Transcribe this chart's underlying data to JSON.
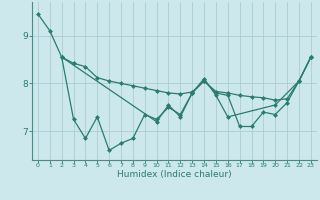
{
  "xlabel": "Humidex (Indice chaleur)",
  "bg_color": "#cce8ec",
  "line_color": "#2a7d6e",
  "grid_color": "#aacdd4",
  "axis_color": "#4a8a8a",
  "xlim": [
    -0.5,
    23.5
  ],
  "ylim": [
    6.4,
    9.7
  ],
  "yticks": [
    7,
    8,
    9
  ],
  "xticks": [
    0,
    1,
    2,
    3,
    4,
    5,
    6,
    7,
    8,
    9,
    10,
    11,
    12,
    13,
    14,
    15,
    16,
    17,
    18,
    19,
    20,
    21,
    22,
    23
  ],
  "series1": [
    0,
    1,
    2,
    3,
    4,
    5,
    6,
    7,
    8,
    9,
    10,
    11,
    12,
    13,
    14,
    15,
    16,
    17,
    18,
    19,
    20,
    21,
    22,
    23
  ],
  "vals1": [
    9.45,
    9.1,
    8.55,
    8.42,
    8.35,
    8.12,
    8.05,
    8.0,
    7.95,
    7.9,
    7.85,
    7.8,
    7.78,
    7.82,
    8.05,
    7.83,
    7.8,
    7.75,
    7.72,
    7.7,
    7.65,
    7.68,
    8.05,
    8.55
  ],
  "series2_x": [
    2,
    3,
    4,
    5,
    6,
    7,
    8,
    9,
    10,
    11,
    12,
    13,
    14,
    15,
    16,
    17,
    18,
    19,
    20,
    21,
    22,
    23
  ],
  "vals2": [
    8.55,
    7.25,
    6.85,
    7.3,
    6.6,
    6.75,
    6.85,
    7.35,
    7.25,
    7.5,
    7.35,
    7.8,
    8.05,
    7.8,
    7.75,
    7.1,
    7.1,
    7.4,
    7.35,
    7.6,
    8.05,
    8.55
  ],
  "series3_x": [
    2,
    10,
    11,
    12,
    13,
    14,
    15,
    16,
    20,
    22,
    23
  ],
  "vals3": [
    8.55,
    7.2,
    7.55,
    7.3,
    7.8,
    8.1,
    7.75,
    7.3,
    7.55,
    8.05,
    8.55
  ]
}
